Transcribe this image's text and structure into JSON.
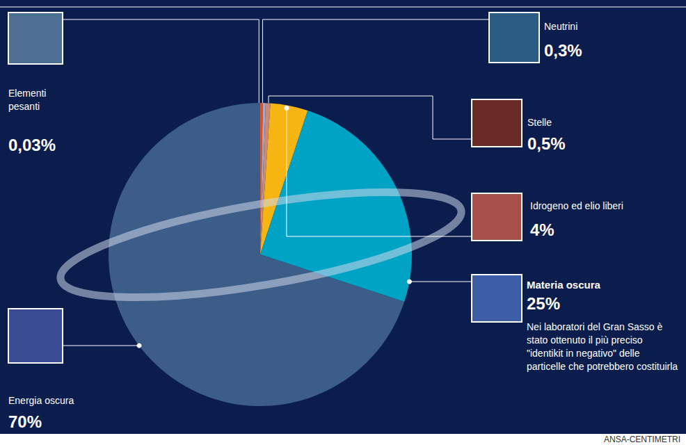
{
  "chart_data": {
    "type": "pie",
    "labels": [
      "Elementi pesanti",
      "Neutrini",
      "Stelle",
      "Idrogeno ed elio liberi",
      "Materia oscura",
      "Energia oscura"
    ],
    "values": [
      0.03,
      0.3,
      0.5,
      4,
      25,
      70
    ],
    "value_labels": [
      "0,03%",
      "0,3%",
      "0,5%",
      "4%",
      "25%",
      "70%"
    ],
    "colors": [
      "#d9532c",
      "#a9a9bd",
      "#c98a7a",
      "#f7b514",
      "#00a3c4",
      "#3c5d88"
    ],
    "data_labels": true,
    "annotations": [
      {
        "label": "Materia oscura",
        "text": "Nei laboratori del Gran Sasso è stato ottenuto il più preciso \"identikit in negativo\" delle particelle che potrebbero costituirla"
      }
    ],
    "source": "ANSA-CENTIMETRI"
  }
}
